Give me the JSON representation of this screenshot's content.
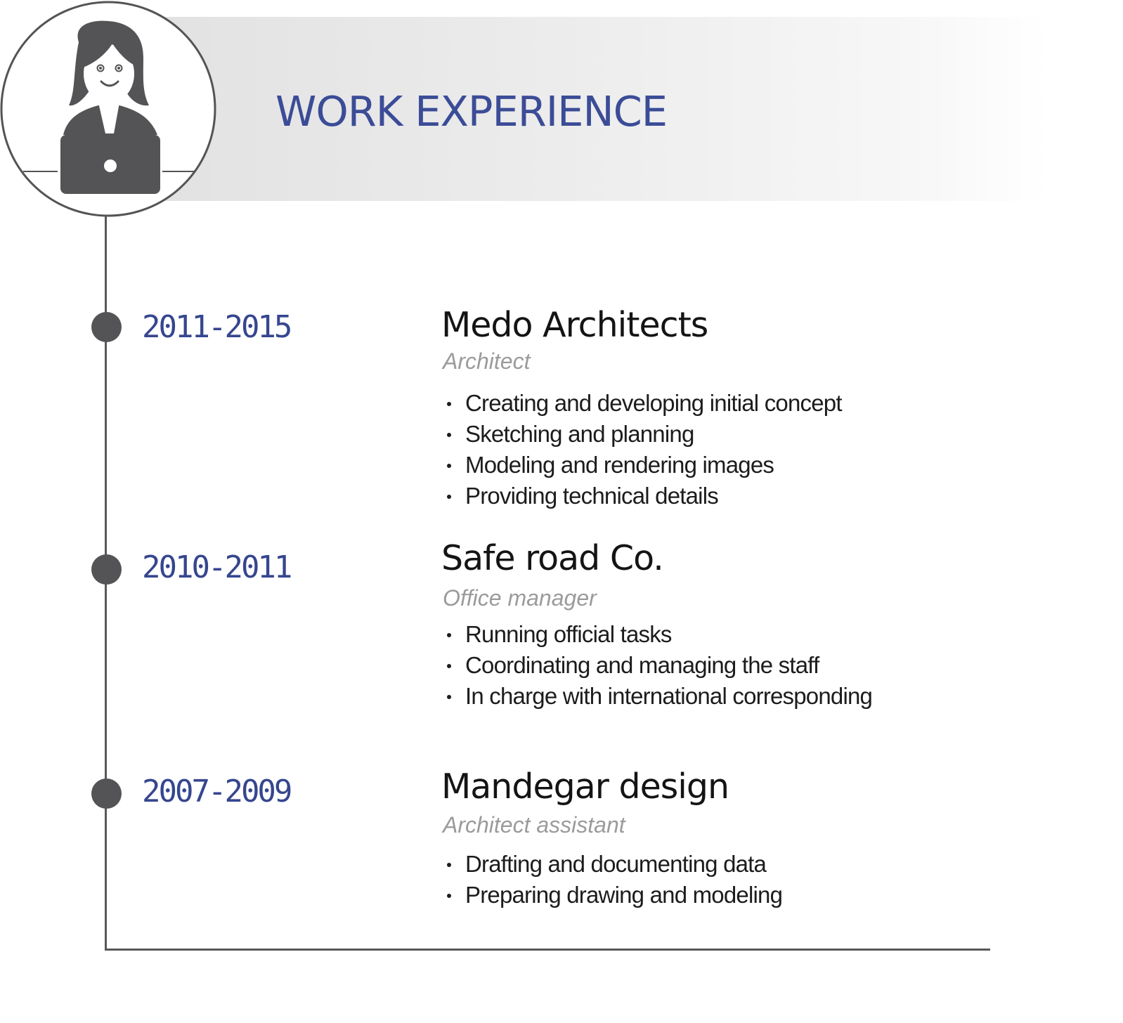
{
  "header": {
    "title": "WORK EXPERIENCE"
  },
  "avatar": {
    "icon": "woman-with-laptop-icon"
  },
  "colors": {
    "accent": "#3b4c97",
    "timeline": "#58585a",
    "role": "#9b9b9b",
    "text": "#141414"
  },
  "entries": [
    {
      "years": "2011-2015",
      "company": "Medo Architects",
      "role": "Architect",
      "duties": [
        "Creating and developing initial concept",
        "Sketching and planning",
        "Modeling and rendering images",
        "Providing technical details"
      ]
    },
    {
      "years": "2010-2011",
      "company": "Safe road Co.",
      "role": "Office manager",
      "duties": [
        "Running official tasks",
        "Coordinating and managing the staff",
        "In charge with international corresponding"
      ]
    },
    {
      "years": "2007-2009",
      "company": "Mandegar design",
      "role": "Architect assistant",
      "duties": [
        "Drafting and documenting data",
        "Preparing drawing and modeling"
      ]
    }
  ]
}
